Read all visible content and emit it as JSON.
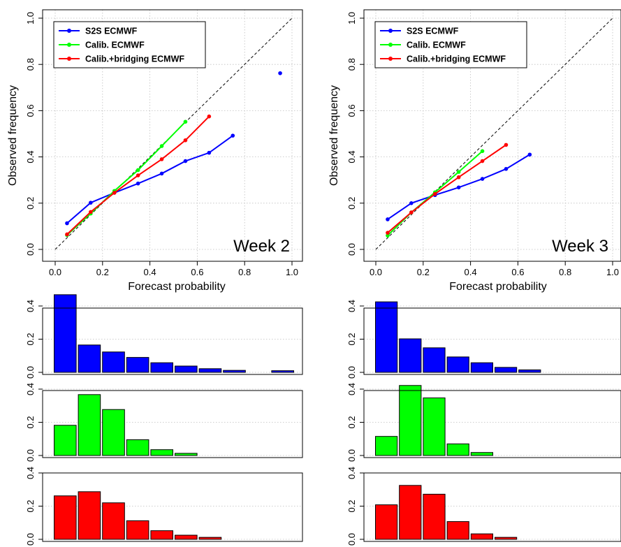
{
  "colors": {
    "s2s": "#0000ff",
    "calib": "#00ff00",
    "bridging": "#ff0000",
    "grid": "#bfbfbf"
  },
  "chart_data": [
    {
      "type": "line",
      "panel": "week2-reliability",
      "annotation": "Week 2",
      "xlabel": "Forecast probability",
      "ylabel": "Observed frequency",
      "xlim": [
        0,
        1
      ],
      "ylim": [
        0,
        1
      ],
      "xticks": [
        "0.0",
        "0.2",
        "0.4",
        "0.6",
        "0.8",
        "1.0"
      ],
      "yticks": [
        "0.0",
        "0.2",
        "0.4",
        "0.6",
        "0.8",
        "1.0"
      ],
      "grid": true,
      "diagonal_reference": true,
      "legend_position": "top-left",
      "series": [
        {
          "name": "S2S ECMWF",
          "color": "#0000ff",
          "points": [
            [
              0.05,
              0.113
            ],
            [
              0.15,
              0.202
            ],
            [
              0.25,
              0.245
            ],
            [
              0.35,
              0.285
            ],
            [
              0.45,
              0.328
            ],
            [
              0.55,
              0.382
            ],
            [
              0.65,
              0.418
            ],
            [
              0.75,
              0.492
            ],
            [
              0.95,
              0.762
            ]
          ],
          "line_count": 8
        },
        {
          "name": "Calib. ECMWF",
          "color": "#00ff00",
          "points": [
            [
              0.05,
              0.062
            ],
            [
              0.15,
              0.155
            ],
            [
              0.25,
              0.253
            ],
            [
              0.35,
              0.343
            ],
            [
              0.45,
              0.447
            ],
            [
              0.55,
              0.552
            ]
          ],
          "line_count": 6
        },
        {
          "name": "Calib.+bridging ECMWF",
          "color": "#ff0000",
          "points": [
            [
              0.05,
              0.065
            ],
            [
              0.15,
              0.162
            ],
            [
              0.25,
              0.245
            ],
            [
              0.35,
              0.32
            ],
            [
              0.45,
              0.39
            ],
            [
              0.55,
              0.472
            ],
            [
              0.65,
              0.575
            ]
          ],
          "line_count": 7
        }
      ]
    },
    {
      "type": "line",
      "panel": "week3-reliability",
      "annotation": "Week 3",
      "xlabel": "Forecast probability",
      "ylabel": "Observed frequency",
      "xlim": [
        0,
        1
      ],
      "ylim": [
        0,
        1
      ],
      "xticks": [
        "0.0",
        "0.2",
        "0.4",
        "0.6",
        "0.8",
        "1.0"
      ],
      "yticks": [
        "0.0",
        "0.2",
        "0.4",
        "0.6",
        "0.8",
        "1.0"
      ],
      "grid": true,
      "diagonal_reference": true,
      "legend_position": "top-left",
      "series": [
        {
          "name": "S2S ECMWF",
          "color": "#0000ff",
          "points": [
            [
              0.05,
              0.13
            ],
            [
              0.15,
              0.2
            ],
            [
              0.25,
              0.235
            ],
            [
              0.35,
              0.268
            ],
            [
              0.45,
              0.305
            ],
            [
              0.55,
              0.348
            ],
            [
              0.65,
              0.41
            ]
          ],
          "line_count": 7
        },
        {
          "name": "Calib. ECMWF",
          "color": "#00ff00",
          "points": [
            [
              0.05,
              0.06
            ],
            [
              0.15,
              0.16
            ],
            [
              0.25,
              0.247
            ],
            [
              0.35,
              0.335
            ],
            [
              0.45,
              0.425
            ]
          ],
          "line_count": 5
        },
        {
          "name": "Calib.+bridging ECMWF",
          "color": "#ff0000",
          "points": [
            [
              0.05,
              0.072
            ],
            [
              0.15,
              0.16
            ],
            [
              0.25,
              0.24
            ],
            [
              0.35,
              0.312
            ],
            [
              0.45,
              0.382
            ],
            [
              0.55,
              0.452
            ]
          ],
          "line_count": 6
        }
      ]
    },
    {
      "type": "bar",
      "panel": "week2-hist-s2s",
      "color": "#0000ff",
      "ylim": [
        0,
        0.5
      ],
      "yticks": [
        "0.0",
        "0.2",
        "0.4"
      ],
      "values": [
        0.468,
        0.165,
        0.123,
        0.09,
        0.058,
        0.038,
        0.022,
        0.012,
        0,
        0.01
      ]
    },
    {
      "type": "bar",
      "panel": "week2-hist-calib",
      "color": "#00ff00",
      "ylim": [
        0,
        0.5
      ],
      "yticks": [
        "0.0",
        "0.2",
        "0.4"
      ],
      "values": [
        0.182,
        0.367,
        0.277,
        0.095,
        0.035,
        0.013,
        0,
        0,
        0,
        0
      ]
    },
    {
      "type": "bar",
      "panel": "week2-hist-bridging",
      "color": "#ff0000",
      "ylim": [
        0,
        0.5
      ],
      "yticks": [
        "0.0",
        "0.2",
        "0.4"
      ],
      "values": [
        0.262,
        0.287,
        0.22,
        0.112,
        0.052,
        0.025,
        0.012,
        0,
        0,
        0
      ]
    },
    {
      "type": "bar",
      "panel": "week3-hist-s2s",
      "color": "#0000ff",
      "ylim": [
        0,
        0.5
      ],
      "yticks": [
        "0.0",
        "0.2",
        "0.4"
      ],
      "values": [
        0.425,
        0.202,
        0.148,
        0.093,
        0.058,
        0.03,
        0.015,
        0,
        0,
        0
      ]
    },
    {
      "type": "bar",
      "panel": "week3-hist-calib",
      "color": "#00ff00",
      "ylim": [
        0,
        0.5
      ],
      "yticks": [
        "0.0",
        "0.2",
        "0.4"
      ],
      "values": [
        0.115,
        0.422,
        0.347,
        0.07,
        0.018,
        0,
        0,
        0,
        0,
        0
      ]
    },
    {
      "type": "bar",
      "panel": "week3-hist-bridging",
      "color": "#ff0000",
      "ylim": [
        0,
        0.5
      ],
      "yticks": [
        "0.0",
        "0.2",
        "0.4"
      ],
      "values": [
        0.208,
        0.325,
        0.272,
        0.107,
        0.033,
        0.012,
        0,
        0,
        0,
        0
      ]
    }
  ]
}
